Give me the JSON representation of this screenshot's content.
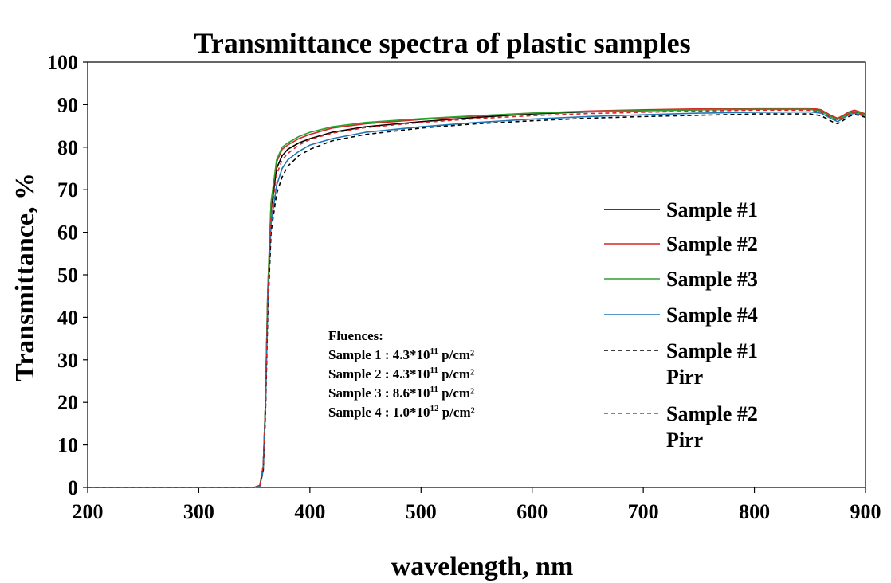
{
  "chart_data": {
    "type": "line",
    "title": "Transmittance spectra of plastic samples",
    "xlabel": "wavelength, nm",
    "ylabel": "Transmittance, %",
    "xlim": [
      200,
      900
    ],
    "ylim": [
      0,
      100
    ],
    "x_ticks": [
      200,
      300,
      400,
      500,
      600,
      700,
      800,
      900
    ],
    "y_ticks": [
      0,
      10,
      20,
      30,
      40,
      50,
      60,
      70,
      80,
      90,
      100
    ],
    "grid": false,
    "legend_position": "right",
    "series": [
      {
        "name": "Sample #1",
        "color": "#000000",
        "dash": "solid",
        "x": [
          200,
          350,
          355,
          358,
          360,
          362,
          365,
          370,
          375,
          380,
          390,
          400,
          420,
          450,
          500,
          550,
          600,
          650,
          700,
          750,
          800,
          850,
          860,
          870,
          875,
          880,
          885,
          890,
          895,
          900
        ],
        "y": [
          0,
          0,
          0.5,
          5,
          20,
          45,
          65,
          75,
          78,
          79.5,
          81,
          82,
          83.5,
          84.8,
          86,
          87,
          87.8,
          88.3,
          88.6,
          88.8,
          89,
          89,
          88.6,
          87,
          86.5,
          87.2,
          88,
          88.3,
          88,
          87.5
        ]
      },
      {
        "name": "Sample #2",
        "color": "#d62728",
        "dash": "solid",
        "x": [
          200,
          350,
          355,
          358,
          360,
          362,
          365,
          370,
          375,
          380,
          390,
          400,
          420,
          450,
          500,
          550,
          600,
          650,
          700,
          750,
          800,
          850,
          860,
          870,
          875,
          880,
          885,
          890,
          895,
          900
        ],
        "y": [
          0,
          0,
          0.5,
          5,
          20,
          46,
          67,
          76.5,
          79.5,
          80.5,
          82,
          83,
          84.5,
          85.5,
          86.5,
          87.3,
          88,
          88.5,
          88.8,
          89,
          89.2,
          89.2,
          88.8,
          87.3,
          86.8,
          87.5,
          88.3,
          88.7,
          88.3,
          87.8
        ]
      },
      {
        "name": "Sample #3",
        "color": "#2ca02c",
        "dash": "solid",
        "x": [
          200,
          350,
          355,
          358,
          360,
          362,
          365,
          370,
          375,
          380,
          390,
          400,
          420,
          450,
          500,
          550,
          600,
          650,
          700,
          750,
          800,
          850,
          860,
          870,
          875,
          880,
          885,
          890,
          895,
          900
        ],
        "y": [
          0,
          0,
          0.5,
          5,
          20,
          46,
          67,
          77,
          80,
          81,
          82.5,
          83.5,
          84.8,
          85.8,
          86.7,
          87.4,
          88,
          88.4,
          88.6,
          88.8,
          88.9,
          88.9,
          88.5,
          87,
          86.5,
          87.2,
          88,
          88.4,
          88,
          87.5
        ]
      },
      {
        "name": "Sample #4",
        "color": "#1f77b4",
        "dash": "solid",
        "x": [
          200,
          350,
          355,
          358,
          360,
          362,
          365,
          370,
          375,
          380,
          390,
          400,
          420,
          450,
          500,
          550,
          600,
          650,
          700,
          750,
          800,
          850,
          860,
          870,
          875,
          880,
          885,
          890,
          895,
          900
        ],
        "y": [
          0,
          0,
          0.4,
          4,
          18,
          42,
          62,
          71,
          75,
          77,
          79,
          80.5,
          82,
          83.5,
          84.8,
          85.8,
          86.6,
          87.2,
          87.6,
          88,
          88.2,
          88.3,
          88,
          86.6,
          86,
          86.8,
          87.6,
          88,
          87.6,
          87.1
        ]
      },
      {
        "name": "Sample #1 Pirr",
        "color": "#000000",
        "dash": "dashed",
        "x": [
          200,
          350,
          355,
          358,
          360,
          362,
          365,
          370,
          375,
          380,
          390,
          400,
          420,
          450,
          500,
          550,
          600,
          650,
          700,
          750,
          800,
          850,
          860,
          870,
          875,
          880,
          885,
          890,
          895,
          900
        ],
        "y": [
          0,
          0,
          0.4,
          4,
          17,
          40,
          60,
          69,
          73,
          75.5,
          78,
          79.5,
          81.5,
          83,
          84.5,
          85.5,
          86.2,
          86.8,
          87.2,
          87.5,
          87.8,
          87.8,
          87.4,
          86,
          85.5,
          86.3,
          87.2,
          87.7,
          87.4,
          87
        ]
      },
      {
        "name": "Sample #2 Pirr",
        "color": "#d62728",
        "dash": "dashed",
        "x": [
          200,
          350,
          355,
          358,
          360,
          362,
          365,
          370,
          375,
          380,
          390,
          400,
          420,
          450,
          500,
          550,
          600,
          650,
          700,
          750,
          800,
          850,
          860,
          870,
          875,
          880,
          885,
          890,
          895,
          900
        ],
        "y": [
          0,
          0,
          0.5,
          5,
          19,
          44,
          64,
          73.5,
          77,
          78.5,
          80.5,
          81.8,
          83.3,
          84.6,
          85.8,
          86.7,
          87.4,
          87.9,
          88.2,
          88.5,
          88.7,
          88.7,
          88.3,
          86.8,
          86.3,
          87,
          87.8,
          88.2,
          87.8,
          87.3
        ]
      }
    ],
    "legend_labels": [
      [
        "Sample #1"
      ],
      [
        "Sample #2"
      ],
      [
        "Sample #3"
      ],
      [
        "Sample #4"
      ],
      [
        "Sample #1",
        "Pirr"
      ],
      [
        "Sample #2",
        "Pirr"
      ]
    ],
    "annotation": {
      "heading": "Fluences:",
      "lines": [
        {
          "label": "Sample 1 :",
          "base": "4.3*10",
          "exp": "11",
          "unit": "p/cm²"
        },
        {
          "label": "Sample 2 :",
          "base": "4.3*10",
          "exp": "11",
          "unit": "p/cm²"
        },
        {
          "label": "Sample 3 :",
          "base": "8.6*10",
          "exp": "11",
          "unit": "p/cm²"
        },
        {
          "label": "Sample 4 :",
          "base": "1.0*10",
          "exp": "12",
          "unit": "p/cm²"
        }
      ]
    }
  }
}
